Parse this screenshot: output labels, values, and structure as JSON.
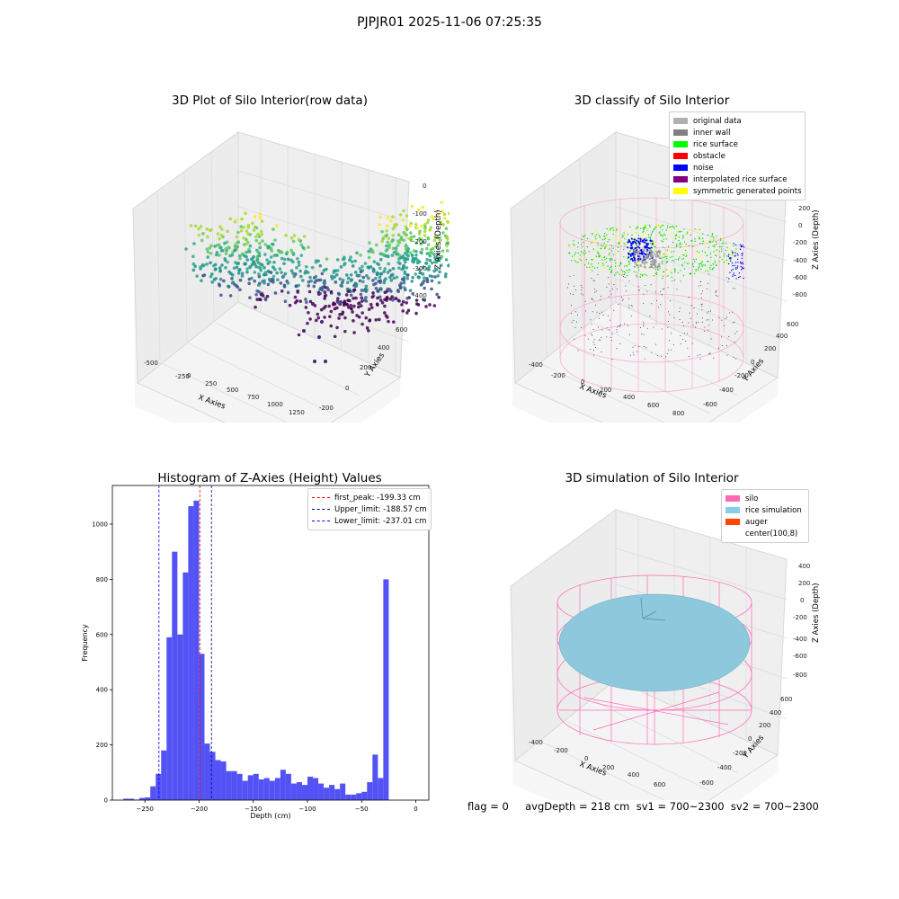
{
  "suptitle": "PJPJR01 2025-11-06 07:25:35",
  "footer_text": "flag = 0     avgDepth = 218 cm  sv1 = 700~2300  sv2 = 700~2300",
  "chart_data": [
    {
      "type": "scatter",
      "projection": "3d",
      "title": "3D Plot of Silo Interior(row data)",
      "xlabel": "X Axies",
      "ylabel": "Y Axies",
      "zlabel": "Z Axies (Depth)",
      "x_ticks": [
        "-500",
        "-250",
        "0",
        "250",
        "500",
        "750",
        "1000",
        "1250"
      ],
      "y_ticks": [
        "-200",
        "0",
        "200",
        "400",
        "600"
      ],
      "z_ticks": [
        "0",
        "-100",
        "-200",
        "-300",
        "-400"
      ],
      "colormap": "viridis"
    },
    {
      "type": "scatter",
      "projection": "3d",
      "title": "3D classify of Silo Interior",
      "legend_position": "top-right",
      "legend": [
        {
          "label": "original data",
          "color": "#b0b0b0"
        },
        {
          "label": "inner wall",
          "color": "#808080"
        },
        {
          "label": "rice surface",
          "color": "#00ff00"
        },
        {
          "label": "obstacle",
          "color": "#ff0000"
        },
        {
          "label": "noise",
          "color": "#0000ff"
        },
        {
          "label": "interpolated rice surface",
          "color": "#800080"
        },
        {
          "label": "symmetric generated points",
          "color": "#ffff00"
        }
      ],
      "xlabel": "X Axies",
      "ylabel": "Y Axies",
      "zlabel": "Z Axies (Depth)",
      "x_ticks": [
        "-400",
        "-200",
        "0",
        "200",
        "400",
        "600",
        "800"
      ],
      "y_ticks": [
        "-600",
        "-400",
        "-200",
        "0",
        "200",
        "400",
        "600"
      ],
      "z_ticks": [
        "200",
        "0",
        "-200",
        "-400",
        "-600",
        "-800"
      ],
      "wireframe_color": "#ff69b4"
    },
    {
      "type": "bar",
      "title": "Histogram of Z-Axies (Height) Values",
      "xlabel": "Depth (cm)",
      "ylabel": "Frequency",
      "xlim": [
        -280,
        12
      ],
      "ylim": [
        0,
        1140
      ],
      "x_ticks": [
        -250,
        -200,
        -150,
        -100,
        -50,
        0
      ],
      "y_ticks": [
        0,
        200,
        400,
        600,
        800,
        1000
      ],
      "bar_color": "#4a4af4",
      "bins": [
        {
          "x0": -270,
          "x1": -265,
          "value": 5
        },
        {
          "x0": -265,
          "x1": -260,
          "value": 5
        },
        {
          "x0": -260,
          "x1": -255,
          "value": 2
        },
        {
          "x0": -255,
          "x1": -250,
          "value": 8
        },
        {
          "x0": -250,
          "x1": -245,
          "value": 10
        },
        {
          "x0": -245,
          "x1": -240,
          "value": 50
        },
        {
          "x0": -240,
          "x1": -235,
          "value": 95
        },
        {
          "x0": -235,
          "x1": -230,
          "value": 180
        },
        {
          "x0": -230,
          "x1": -225,
          "value": 590
        },
        {
          "x0": -225,
          "x1": -220,
          "value": 900
        },
        {
          "x0": -220,
          "x1": -215,
          "value": 600
        },
        {
          "x0": -215,
          "x1": -210,
          "value": 825
        },
        {
          "x0": -210,
          "x1": -205,
          "value": 1065
        },
        {
          "x0": -205,
          "x1": -200,
          "value": 1085
        },
        {
          "x0": -200,
          "x1": -195,
          "value": 530
        },
        {
          "x0": -195,
          "x1": -190,
          "value": 205
        },
        {
          "x0": -190,
          "x1": -185,
          "value": 175
        },
        {
          "x0": -185,
          "x1": -180,
          "value": 145
        },
        {
          "x0": -180,
          "x1": -175,
          "value": 140
        },
        {
          "x0": -175,
          "x1": -170,
          "value": 105
        },
        {
          "x0": -170,
          "x1": -165,
          "value": 105
        },
        {
          "x0": -165,
          "x1": -160,
          "value": 95
        },
        {
          "x0": -160,
          "x1": -155,
          "value": 70
        },
        {
          "x0": -155,
          "x1": -150,
          "value": 90
        },
        {
          "x0": -150,
          "x1": -145,
          "value": 95
        },
        {
          "x0": -145,
          "x1": -140,
          "value": 75
        },
        {
          "x0": -140,
          "x1": -135,
          "value": 80
        },
        {
          "x0": -135,
          "x1": -130,
          "value": 70
        },
        {
          "x0": -130,
          "x1": -125,
          "value": 80
        },
        {
          "x0": -125,
          "x1": -120,
          "value": 110
        },
        {
          "x0": -120,
          "x1": -115,
          "value": 95
        },
        {
          "x0": -115,
          "x1": -110,
          "value": 60
        },
        {
          "x0": -110,
          "x1": -105,
          "value": 65
        },
        {
          "x0": -105,
          "x1": -100,
          "value": 55
        },
        {
          "x0": -100,
          "x1": -95,
          "value": 85
        },
        {
          "x0": -95,
          "x1": -90,
          "value": 80
        },
        {
          "x0": -90,
          "x1": -85,
          "value": 60
        },
        {
          "x0": -85,
          "x1": -80,
          "value": 45
        },
        {
          "x0": -80,
          "x1": -75,
          "value": 55
        },
        {
          "x0": -75,
          "x1": -70,
          "value": 40
        },
        {
          "x0": -70,
          "x1": -65,
          "value": 60
        },
        {
          "x0": -65,
          "x1": -60,
          "value": 20
        },
        {
          "x0": -60,
          "x1": -55,
          "value": 20
        },
        {
          "x0": -55,
          "x1": -50,
          "value": 25
        },
        {
          "x0": -50,
          "x1": -45,
          "value": 30
        },
        {
          "x0": -45,
          "x1": -40,
          "value": 65
        },
        {
          "x0": -40,
          "x1": -35,
          "value": 165
        },
        {
          "x0": -35,
          "x1": -30,
          "value": 80
        },
        {
          "x0": -30,
          "x1": -25,
          "value": 800
        }
      ],
      "vlines": [
        {
          "x": -199.33,
          "color": "#ff0000",
          "label": "first_peak: -199.33 cm"
        },
        {
          "x": -188.57,
          "color": "#00008b",
          "label": "Upper_limit: -188.57 cm"
        },
        {
          "x": -237.01,
          "color": "#0000ff",
          "label": "Lower_limit: -237.01 cm"
        }
      ],
      "legend_position": "top-right"
    },
    {
      "type": "surface",
      "projection": "3d",
      "title": "3D simulation of Silo Interior",
      "legend_position": "top-right",
      "legend": [
        {
          "label": "silo",
          "color": "#ff69b4"
        },
        {
          "label": "rice simulation",
          "color": "#87ceeb"
        },
        {
          "label": "auger",
          "color": "#ff4500"
        },
        {
          "label": "center(100,8)",
          "color": ""
        }
      ],
      "xlabel": "X Axies",
      "ylabel": "Y Axies",
      "zlabel": "Z Axies (Depth)",
      "x_ticks": [
        "-400",
        "-200",
        "0",
        "200",
        "400",
        "600"
      ],
      "y_ticks": [
        "-600",
        "-400",
        "-200",
        "0",
        "200",
        "400",
        "600"
      ],
      "z_ticks": [
        "400",
        "200",
        "0",
        "-200",
        "-400",
        "-600",
        "-800"
      ]
    }
  ]
}
